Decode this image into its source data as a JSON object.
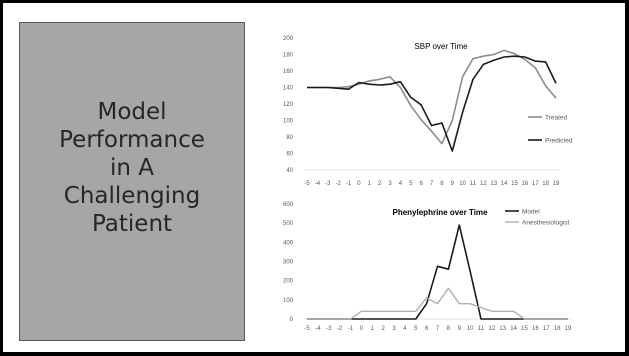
{
  "slide_title": "Model\nPerformance\nin A\nChallenging\nPatient",
  "colors": {
    "treated": "#8c8c8c",
    "predicted": "#1a1a1a",
    "model": "#1a1a1a",
    "anesthesiologist": "#b0b0b0"
  },
  "chart_data": [
    {
      "type": "line",
      "title": "SBP over Time",
      "x": [
        -5,
        -4,
        -3,
        -2,
        -1,
        0,
        1,
        2,
        3,
        4,
        5,
        6,
        7,
        8,
        9,
        10,
        11,
        12,
        13,
        14,
        15,
        16,
        17,
        18,
        19
      ],
      "ylim": [
        40,
        200
      ],
      "yticks": [
        40,
        60,
        80,
        100,
        120,
        140,
        160,
        180,
        200
      ],
      "legend_position": "right",
      "series": [
        {
          "name": "Treated",
          "color": "#8c8c8c",
          "values": [
            140,
            140,
            140,
            140,
            141,
            144,
            148,
            150,
            153,
            140,
            118,
            101,
            87,
            72,
            100,
            153,
            175,
            178,
            180,
            185,
            181,
            174,
            164,
            142,
            127
          ]
        },
        {
          "name": "Predicted",
          "color": "#1a1a1a",
          "values": [
            140,
            140,
            140,
            139,
            138,
            146,
            144,
            143,
            144,
            147,
            128,
            119,
            94,
            97,
            63,
            110,
            150,
            168,
            173,
            177,
            178,
            177,
            172,
            171,
            145
          ]
        }
      ]
    },
    {
      "type": "line",
      "title": "Phenylephrine over Time",
      "x": [
        -5,
        -4,
        -3,
        -2,
        -1,
        0,
        1,
        2,
        3,
        4,
        5,
        6,
        7,
        8,
        9,
        10,
        11,
        12,
        13,
        14,
        15,
        16,
        17,
        18,
        19
      ],
      "ylim": [
        0,
        600
      ],
      "yticks": [
        0,
        100,
        200,
        300,
        400,
        500,
        600
      ],
      "legend_position": "top-right",
      "series": [
        {
          "name": "Model",
          "color": "#1a1a1a",
          "values": [
            0,
            0,
            0,
            0,
            0,
            0,
            0,
            0,
            0,
            0,
            0,
            80,
            275,
            260,
            490,
            250,
            0,
            0,
            0,
            0,
            0,
            0,
            0,
            0,
            0
          ]
        },
        {
          "name": "Anesthesiologist",
          "color": "#b0b0b0",
          "values": [
            0,
            0,
            0,
            0,
            0,
            40,
            40,
            40,
            40,
            40,
            40,
            110,
            80,
            160,
            80,
            80,
            60,
            40,
            40,
            40,
            0,
            0,
            0,
            0,
            0
          ]
        }
      ]
    }
  ]
}
